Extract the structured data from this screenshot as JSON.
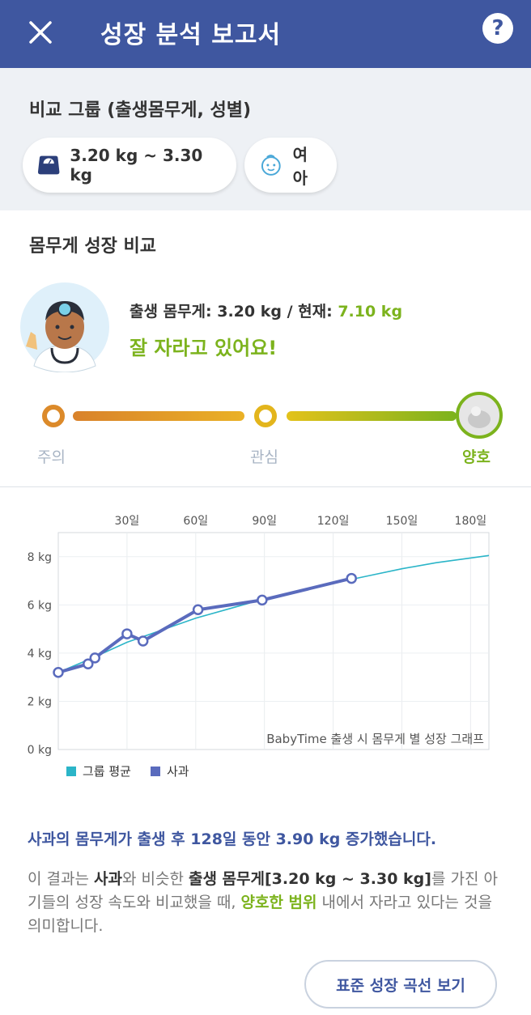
{
  "appbar": {
    "title": "성장 분석 보고서",
    "close_icon": "close-icon",
    "help_icon": "help-icon",
    "help_glyph": "?"
  },
  "compare": {
    "heading": "비교 그룹 (출생몸무게, 성별)",
    "weight_range": "3.20 kg ~ 3.30 kg",
    "sex": "여아"
  },
  "growth": {
    "heading": "몸무게 성장 비교",
    "birth_label": "출생 몸무게: 3.20 kg / 현재: ",
    "current_value": "7.10 kg",
    "message": "잘 자라고 있어요!",
    "scale_labels": [
      "주의",
      "관심",
      "양호"
    ],
    "scale_level": "양호"
  },
  "chart_data": {
    "type": "line",
    "x_unit_suffix": "일",
    "x_ticks": [
      30,
      60,
      90,
      120,
      150,
      180
    ],
    "x_tick_labels": [
      "30일",
      "60일",
      "90일",
      "120일",
      "150일",
      "180일"
    ],
    "xlim": [
      0,
      188
    ],
    "y_ticks": [
      0,
      2,
      4,
      6,
      8
    ],
    "y_tick_labels": [
      "0 kg",
      "2 kg",
      "4 kg",
      "6 kg",
      "8 kg"
    ],
    "ylim": [
      0,
      9
    ],
    "caption": "BabyTime 출생 시 몸무게 별 성장 그래프",
    "grid": true,
    "legend_position": "bottom-left",
    "series": [
      {
        "name": "그룹 평균",
        "color": "#2bb5c8",
        "x": [
          0,
          15,
          30,
          45,
          60,
          75,
          90,
          105,
          120,
          135,
          150,
          165,
          188
        ],
        "y": [
          3.2,
          3.8,
          4.45,
          4.95,
          5.45,
          5.85,
          6.25,
          6.55,
          6.9,
          7.2,
          7.5,
          7.75,
          8.05
        ]
      },
      {
        "name": "사과",
        "color": "#5a6bbd",
        "x": [
          0,
          13,
          16,
          30,
          37,
          61,
          89,
          128
        ],
        "y": [
          3.2,
          3.55,
          3.8,
          4.8,
          4.5,
          5.8,
          6.2,
          7.1
        ]
      }
    ]
  },
  "summary": {
    "headline": "사과의 몸무게가 출생 후 128일 동안 3.90 kg 증가했습니다.",
    "desc_part1": "이 결과는 ",
    "desc_name": "사과",
    "desc_part2": "와 비슷한 ",
    "desc_weight": "출생 몸무게[3.20 kg ~ 3.30 kg]",
    "desc_part3": "를 가진 아기들의 성장 속도와 비교했을 때, ",
    "desc_range": "양호한 범위",
    "desc_part4": " 내에서 자라고 있다는 것을 의미합니다."
  },
  "buttons": {
    "standard_curve": "표준 성장 곡선 보기"
  }
}
